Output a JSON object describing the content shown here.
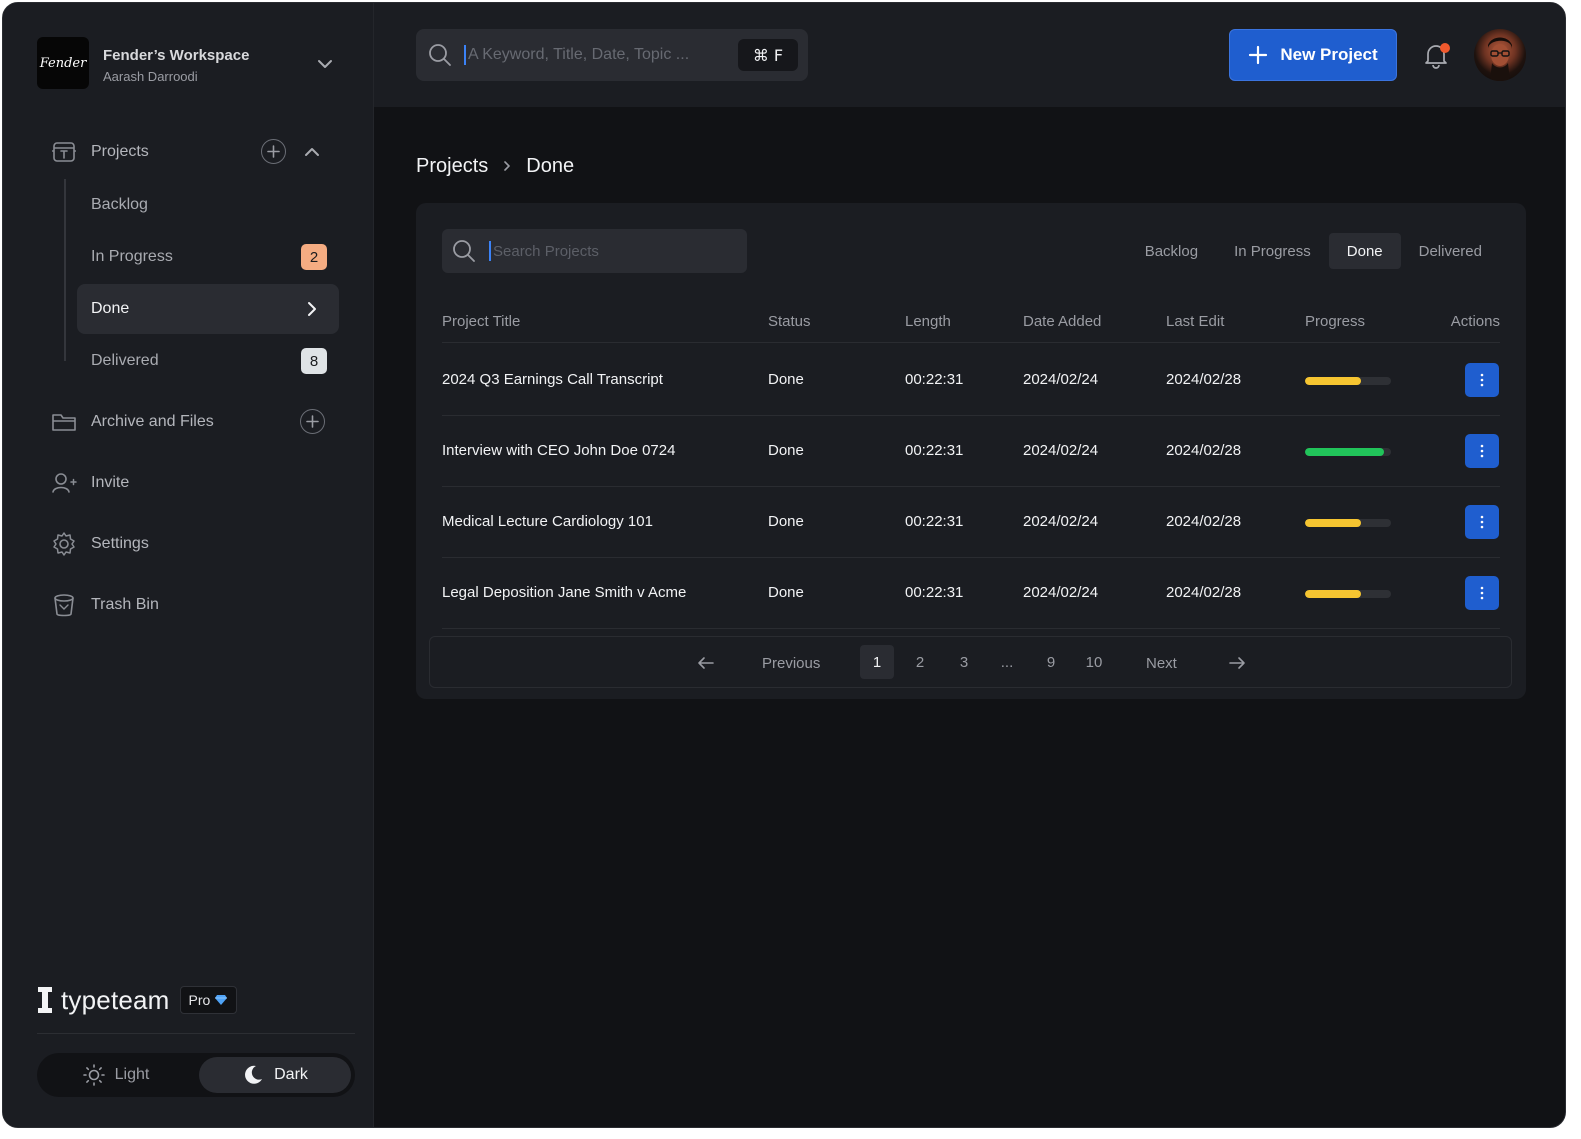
{
  "workspace": {
    "logo_text": "Fender",
    "name": "Fender’s Workspace",
    "user": "Aarash Darroodi"
  },
  "sidebar": {
    "projects_label": "Projects",
    "sub_items": [
      {
        "label": "Backlog",
        "badge": null
      },
      {
        "label": "In Progress",
        "badge": "2",
        "badge_color": "#f5ac82"
      },
      {
        "label": "Done",
        "badge": null,
        "active": true
      },
      {
        "label": "Delivered",
        "badge": "8",
        "badge_color": "#dfe3e6"
      }
    ],
    "archive_label": "Archive and Files",
    "invite_label": "Invite",
    "settings_label": "Settings",
    "trash_label": "Trash Bin"
  },
  "brand": {
    "name": "typeteam",
    "plan": "Pro"
  },
  "theme": {
    "light_label": "Light",
    "dark_label": "Dark",
    "selected": "Dark"
  },
  "topbar": {
    "search_placeholder": "A Keyword, Title, Date, Topic ...",
    "shortcut": "⌘ F",
    "new_project_label": "New Project",
    "has_notification": true
  },
  "breadcrumb": {
    "root": "Projects",
    "current": "Done"
  },
  "projects": {
    "search_placeholder": "Search Projects",
    "filter_tabs": [
      "Backlog",
      "In Progress",
      "Done",
      "Delivered"
    ],
    "active_tab": "Done",
    "columns": [
      "Project Title",
      "Status",
      "Length",
      "Date Added",
      "Last Edit",
      "Progress",
      "Actions"
    ],
    "rows": [
      {
        "title": "2024 Q3 Earnings Call Transcript",
        "status": "Done",
        "length": "00:22:31",
        "date_added": "2024/02/24",
        "last_edit": "2024/02/28",
        "progress": 0.65,
        "progress_color": "#f6c531"
      },
      {
        "title": "Interview with CEO John Doe 0724",
        "status": "Done",
        "length": "00:22:31",
        "date_added": "2024/02/24",
        "last_edit": "2024/02/28",
        "progress": 0.92,
        "progress_color": "#21c45a"
      },
      {
        "title": "Medical Lecture Cardiology 101",
        "status": "Done",
        "length": "00:22:31",
        "date_added": "2024/02/24",
        "last_edit": "2024/02/28",
        "progress": 0.65,
        "progress_color": "#f6c531"
      },
      {
        "title": "Legal Deposition Jane Smith v Acme",
        "status": "Done",
        "length": "00:22:31",
        "date_added": "2024/02/24",
        "last_edit": "2024/02/28",
        "progress": 0.65,
        "progress_color": "#f6c531"
      }
    ]
  },
  "pagination": {
    "previous_label": "Previous",
    "next_label": "Next",
    "pages": [
      "1",
      "2",
      "3",
      "...",
      "9",
      "10"
    ],
    "current": "1"
  },
  "colors": {
    "accent": "#1f5ecf",
    "notification": "#f0592d"
  }
}
